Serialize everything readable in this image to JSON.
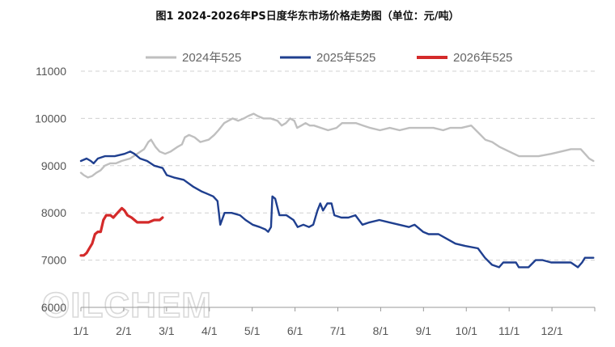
{
  "title": "图1 2024-2026年PS日度华东市场价格走势图（单位：元/吨）",
  "watermark": "OILCHEM",
  "chart_data": {
    "type": "line",
    "title": "图1 2024-2026年PS日度华东市场价格走势图（单位：元/吨）",
    "xlabel": "",
    "ylabel": "",
    "ylim": [
      6000,
      11000
    ],
    "yticks": [
      "6000",
      "7000",
      "8000",
      "9000",
      "10000",
      "11000"
    ],
    "xticks": [
      "1/1",
      "2/1",
      "3/1",
      "4/1",
      "5/1",
      "6/1",
      "7/1",
      "8/1",
      "9/1",
      "10/1",
      "11/1",
      "12/1"
    ],
    "grid": "horizontal dashed",
    "legend": "top-center",
    "series": [
      {
        "name": "2024年525",
        "color": "#bfbfbf",
        "points": [
          [
            "2024-01-01",
            8850
          ],
          [
            "2024-01-03",
            8800
          ],
          [
            "2024-01-06",
            8750
          ],
          [
            "2024-01-09",
            8780
          ],
          [
            "2024-01-12",
            8850
          ],
          [
            "2024-01-15",
            8900
          ],
          [
            "2024-01-18",
            9000
          ],
          [
            "2024-01-22",
            9050
          ],
          [
            "2024-01-26",
            9050
          ],
          [
            "2024-01-30",
            9100
          ],
          [
            "2024-02-05",
            9150
          ],
          [
            "2024-02-10",
            9250
          ],
          [
            "2024-02-15",
            9350
          ],
          [
            "2024-02-18",
            9500
          ],
          [
            "2024-02-20",
            9550
          ],
          [
            "2024-02-23",
            9400
          ],
          [
            "2024-02-26",
            9300
          ],
          [
            "2024-03-01",
            9250
          ],
          [
            "2024-03-05",
            9300
          ],
          [
            "2024-03-10",
            9400
          ],
          [
            "2024-03-13",
            9450
          ],
          [
            "2024-03-15",
            9600
          ],
          [
            "2024-03-18",
            9650
          ],
          [
            "2024-03-22",
            9600
          ],
          [
            "2024-03-26",
            9500
          ],
          [
            "2024-04-01",
            9550
          ],
          [
            "2024-04-05",
            9650
          ],
          [
            "2024-04-08",
            9750
          ],
          [
            "2024-04-12",
            9900
          ],
          [
            "2024-04-15",
            9950
          ],
          [
            "2024-04-18",
            10000
          ],
          [
            "2024-04-22",
            9950
          ],
          [
            "2024-04-26",
            10000
          ],
          [
            "2024-04-29",
            10050
          ],
          [
            "2024-05-03",
            10100
          ],
          [
            "2024-05-06",
            10050
          ],
          [
            "2024-05-10",
            10000
          ],
          [
            "2024-05-15",
            10000
          ],
          [
            "2024-05-20",
            9950
          ],
          [
            "2024-05-23",
            9850
          ],
          [
            "2024-05-26",
            9900
          ],
          [
            "2024-05-29",
            10000
          ],
          [
            "2024-06-01",
            9950
          ],
          [
            "2024-06-03",
            9800
          ],
          [
            "2024-06-06",
            9850
          ],
          [
            "2024-06-09",
            9900
          ],
          [
            "2024-06-12",
            9850
          ],
          [
            "2024-06-15",
            9850
          ],
          [
            "2024-06-20",
            9800
          ],
          [
            "2024-06-25",
            9750
          ],
          [
            "2024-07-01",
            9800
          ],
          [
            "2024-07-05",
            9900
          ],
          [
            "2024-07-10",
            9900
          ],
          [
            "2024-07-15",
            9900
          ],
          [
            "2024-07-20",
            9850
          ],
          [
            "2024-07-25",
            9800
          ],
          [
            "2024-08-01",
            9750
          ],
          [
            "2024-08-08",
            9800
          ],
          [
            "2024-08-15",
            9750
          ],
          [
            "2024-08-22",
            9800
          ],
          [
            "2024-09-01",
            9800
          ],
          [
            "2024-09-08",
            9800
          ],
          [
            "2024-09-15",
            9750
          ],
          [
            "2024-09-20",
            9800
          ],
          [
            "2024-09-28",
            9800
          ],
          [
            "2024-10-05",
            9850
          ],
          [
            "2024-10-10",
            9700
          ],
          [
            "2024-10-15",
            9550
          ],
          [
            "2024-10-20",
            9500
          ],
          [
            "2024-10-25",
            9400
          ],
          [
            "2024-11-01",
            9300
          ],
          [
            "2024-11-08",
            9200
          ],
          [
            "2024-11-15",
            9200
          ],
          [
            "2024-11-22",
            9200
          ],
          [
            "2024-12-01",
            9250
          ],
          [
            "2024-12-08",
            9300
          ],
          [
            "2024-12-15",
            9350
          ],
          [
            "2024-12-22",
            9350
          ],
          [
            "2024-12-25",
            9250
          ],
          [
            "2024-12-28",
            9150
          ],
          [
            "2024-12-31",
            9100
          ]
        ]
      },
      {
        "name": "2025年525",
        "color": "#1f3f8f",
        "points": [
          [
            "2025-01-01",
            9100
          ],
          [
            "2025-01-05",
            9150
          ],
          [
            "2025-01-08",
            9100
          ],
          [
            "2025-01-10",
            9050
          ],
          [
            "2025-01-13",
            9150
          ],
          [
            "2025-01-18",
            9200
          ],
          [
            "2025-01-25",
            9200
          ],
          [
            "2025-02-01",
            9250
          ],
          [
            "2025-02-05",
            9300
          ],
          [
            "2025-02-08",
            9250
          ],
          [
            "2025-02-12",
            9150
          ],
          [
            "2025-02-17",
            9100
          ],
          [
            "2025-02-22",
            9000
          ],
          [
            "2025-02-28",
            8950
          ],
          [
            "2025-03-03",
            8800
          ],
          [
            "2025-03-08",
            8750
          ],
          [
            "2025-03-15",
            8700
          ],
          [
            "2025-03-22",
            8550
          ],
          [
            "2025-03-28",
            8450
          ],
          [
            "2025-04-01",
            8400
          ],
          [
            "2025-04-05",
            8350
          ],
          [
            "2025-04-08",
            8250
          ],
          [
            "2025-04-10",
            7750
          ],
          [
            "2025-04-13",
            8000
          ],
          [
            "2025-04-18",
            8000
          ],
          [
            "2025-04-24",
            7950
          ],
          [
            "2025-04-28",
            7850
          ],
          [
            "2025-05-03",
            7750
          ],
          [
            "2025-05-08",
            7700
          ],
          [
            "2025-05-12",
            7650
          ],
          [
            "2025-05-14",
            7600
          ],
          [
            "2025-05-16",
            7700
          ],
          [
            "2025-05-17",
            8350
          ],
          [
            "2025-05-19",
            8300
          ],
          [
            "2025-05-22",
            7950
          ],
          [
            "2025-05-27",
            7950
          ],
          [
            "2025-06-01",
            7850
          ],
          [
            "2025-06-04",
            7700
          ],
          [
            "2025-06-08",
            7750
          ],
          [
            "2025-06-12",
            7700
          ],
          [
            "2025-06-15",
            7750
          ],
          [
            "2025-06-18",
            8050
          ],
          [
            "2025-06-20",
            8200
          ],
          [
            "2025-06-22",
            8050
          ],
          [
            "2025-06-25",
            8200
          ],
          [
            "2025-06-28",
            8200
          ],
          [
            "2025-06-30",
            7950
          ],
          [
            "2025-07-05",
            7900
          ],
          [
            "2025-07-10",
            7900
          ],
          [
            "2025-07-15",
            7950
          ],
          [
            "2025-07-20",
            7750
          ],
          [
            "2025-07-25",
            7800
          ],
          [
            "2025-08-01",
            7850
          ],
          [
            "2025-08-08",
            7800
          ],
          [
            "2025-08-15",
            7750
          ],
          [
            "2025-08-22",
            7700
          ],
          [
            "2025-08-26",
            7750
          ],
          [
            "2025-09-01",
            7600
          ],
          [
            "2025-09-05",
            7550
          ],
          [
            "2025-09-12",
            7550
          ],
          [
            "2025-09-18",
            7450
          ],
          [
            "2025-09-24",
            7350
          ],
          [
            "2025-10-01",
            7300
          ],
          [
            "2025-10-10",
            7250
          ],
          [
            "2025-10-15",
            7050
          ],
          [
            "2025-10-20",
            6900
          ],
          [
            "2025-10-25",
            6850
          ],
          [
            "2025-10-28",
            6950
          ],
          [
            "2025-11-01",
            6950
          ],
          [
            "2025-11-06",
            6950
          ],
          [
            "2025-11-08",
            6850
          ],
          [
            "2025-11-15",
            6850
          ],
          [
            "2025-11-20",
            7000
          ],
          [
            "2025-11-25",
            7000
          ],
          [
            "2025-12-01",
            6950
          ],
          [
            "2025-12-08",
            6950
          ],
          [
            "2025-12-15",
            6950
          ],
          [
            "2025-12-20",
            6850
          ],
          [
            "2025-12-23",
            6950
          ],
          [
            "2025-12-25",
            7050
          ],
          [
            "2025-12-31",
            7050
          ]
        ]
      },
      {
        "name": "2026年525",
        "color": "#d42a2a",
        "points": [
          [
            "2026-01-01",
            7100
          ],
          [
            "2026-01-03",
            7100
          ],
          [
            "2026-01-05",
            7150
          ],
          [
            "2026-01-07",
            7250
          ],
          [
            "2026-01-09",
            7350
          ],
          [
            "2026-01-11",
            7550
          ],
          [
            "2026-01-13",
            7600
          ],
          [
            "2026-01-15",
            7600
          ],
          [
            "2026-01-17",
            7850
          ],
          [
            "2026-01-19",
            7950
          ],
          [
            "2026-01-22",
            7950
          ],
          [
            "2026-01-24",
            7900
          ],
          [
            "2026-01-27",
            8000
          ],
          [
            "2026-01-30",
            8100
          ],
          [
            "2026-02-01",
            8050
          ],
          [
            "2026-02-03",
            7950
          ],
          [
            "2026-02-06",
            7900
          ],
          [
            "2026-02-10",
            7800
          ],
          [
            "2026-02-14",
            7800
          ],
          [
            "2026-02-18",
            7800
          ],
          [
            "2026-02-22",
            7850
          ],
          [
            "2026-02-26",
            7850
          ],
          [
            "2026-02-28",
            7900
          ]
        ]
      }
    ]
  }
}
